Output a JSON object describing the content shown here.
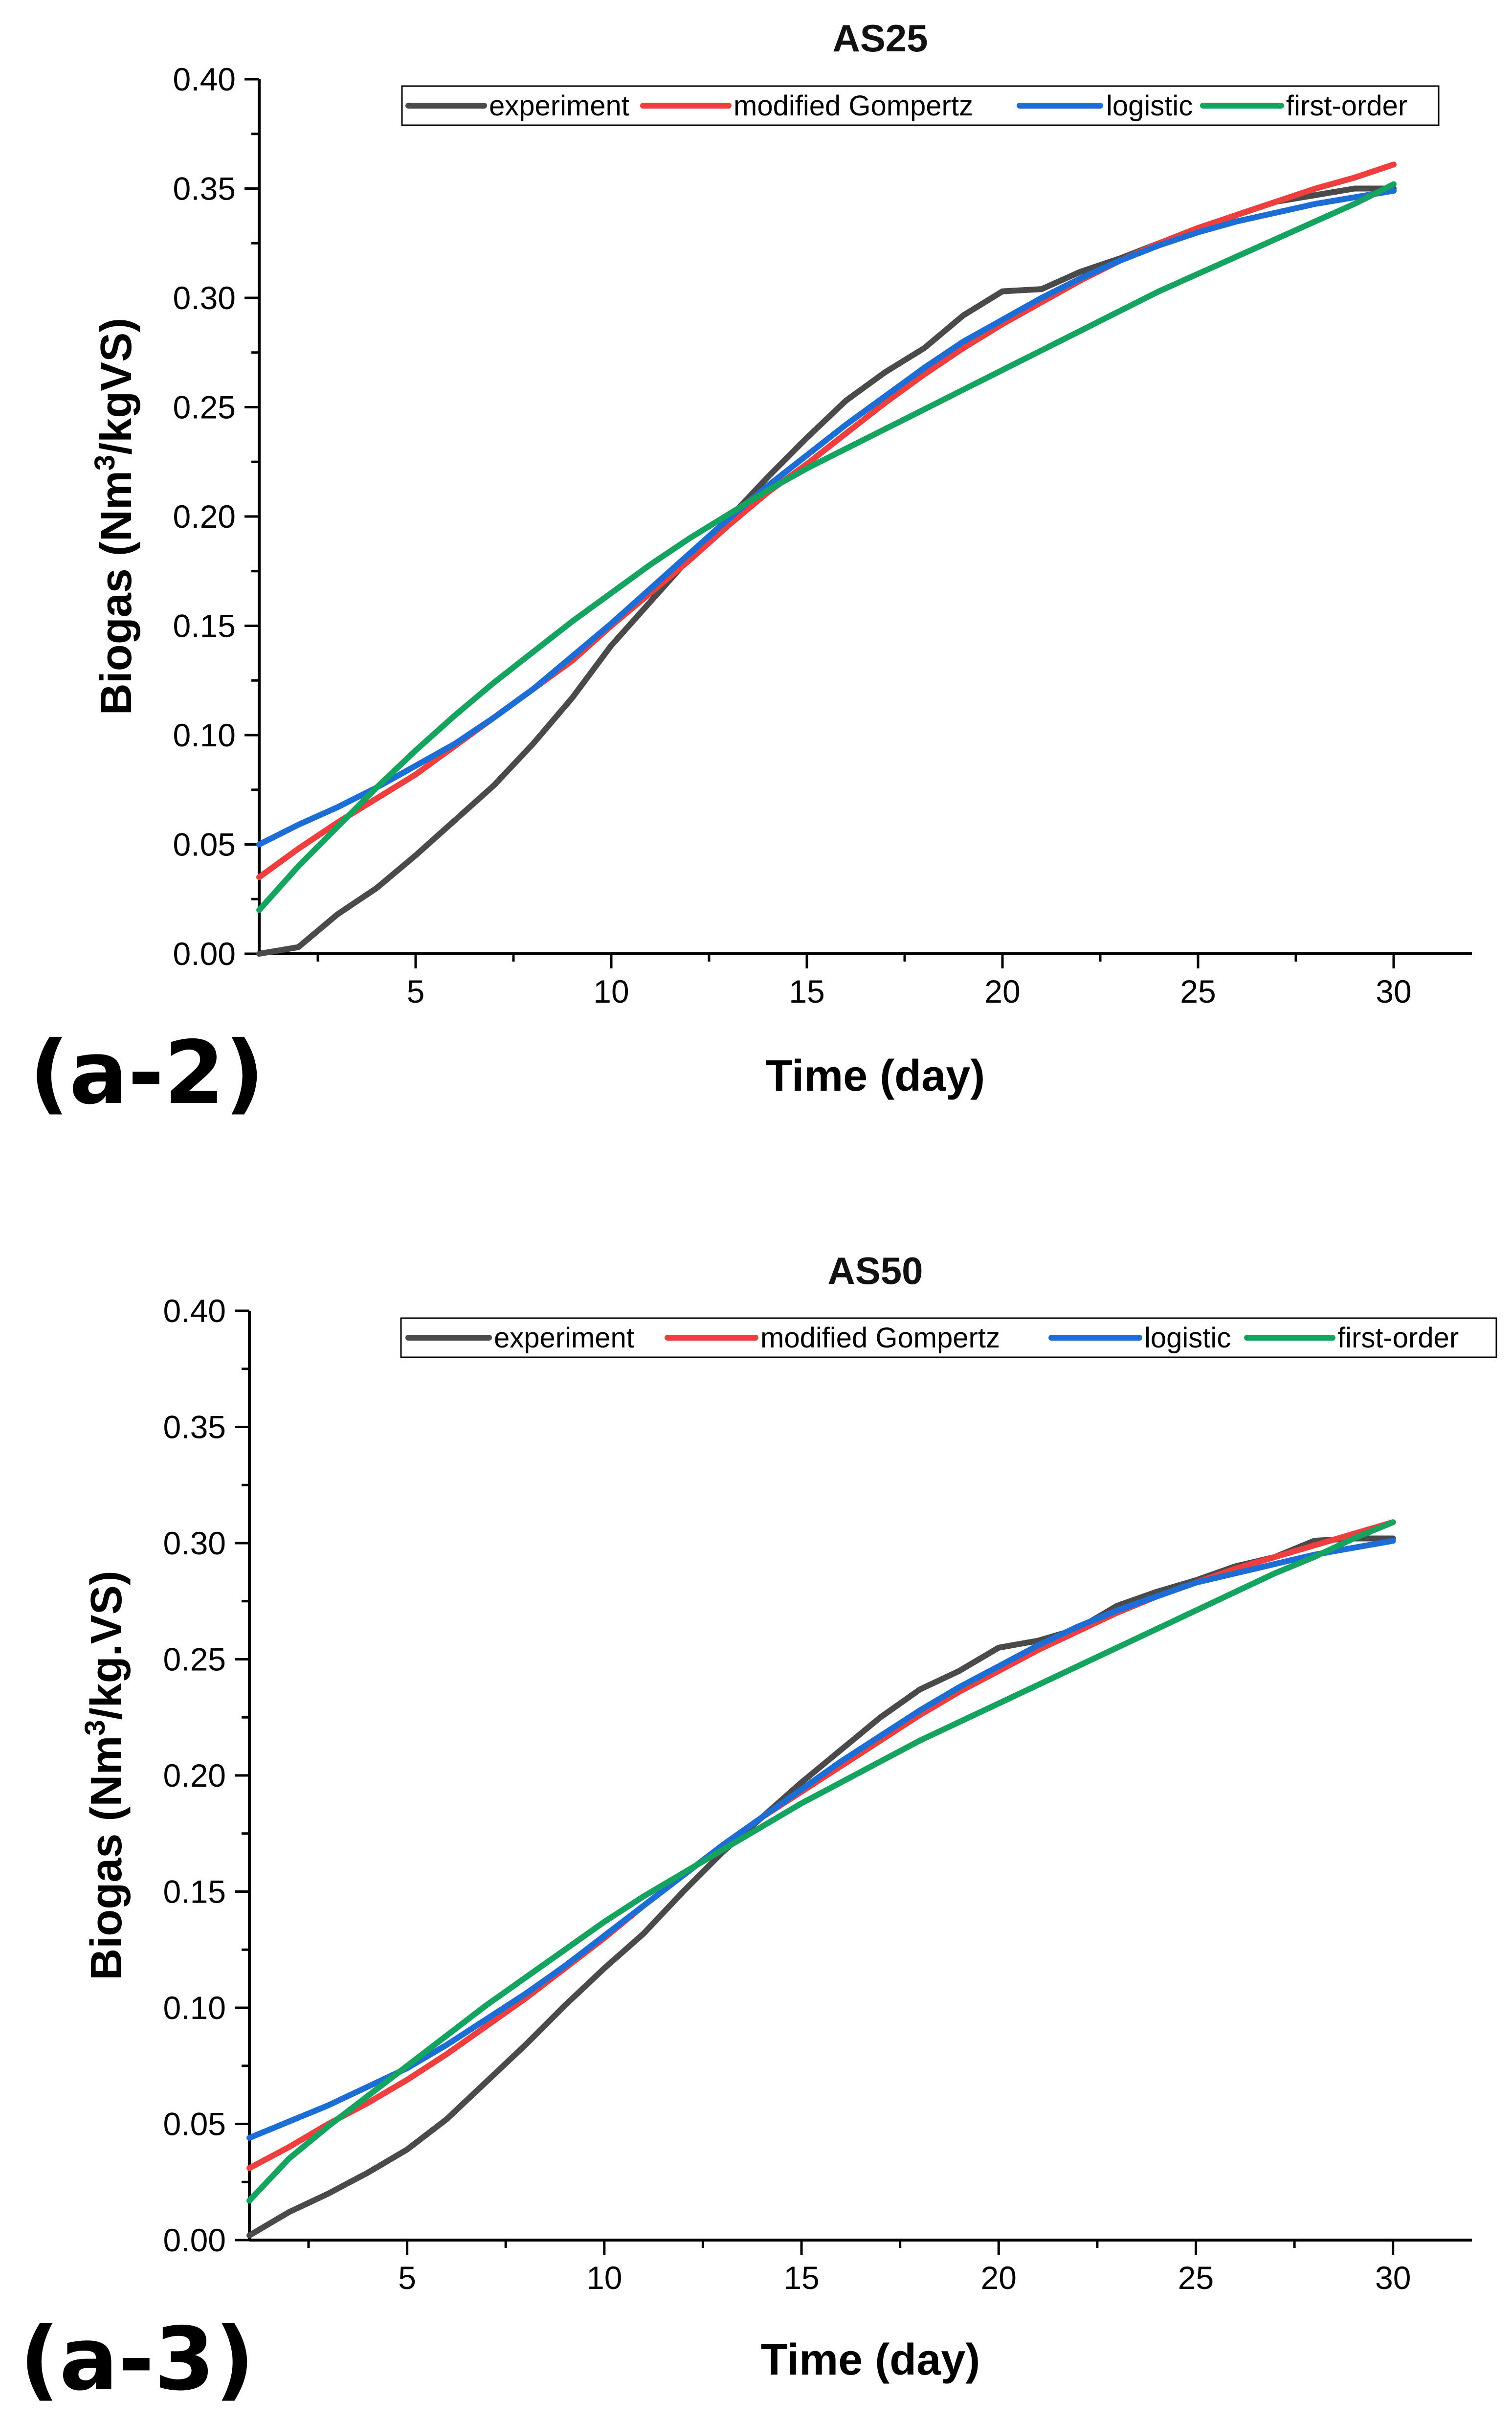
{
  "chart_data": [
    {
      "type": "line",
      "panel_label": "(a-2)",
      "title": "AS25",
      "xlabel": "Time (day)",
      "ylabel_main": "Biogas (Nm",
      "ylabel_sup": "3",
      "ylabel_tail": "/kgVS)",
      "xlim": [
        1,
        32
      ],
      "ylim": [
        0,
        0.4
      ],
      "xticks": [
        5,
        10,
        15,
        20,
        25,
        30
      ],
      "xtick_labels": [
        "5",
        "10",
        "15",
        "20",
        "25",
        "30"
      ],
      "yticks": [
        0,
        0.05,
        0.1,
        0.15,
        0.2,
        0.25,
        0.3,
        0.35,
        0.4
      ],
      "ytick_labels": [
        "0.00",
        "0.05",
        "0.10",
        "0.15",
        "0.20",
        "0.25",
        "0.30",
        "0.35",
        "0.40"
      ],
      "legend_position": "top",
      "series": [
        {
          "name": "experiment",
          "color": "#4a4a4a",
          "x": [
            1,
            2,
            3,
            4,
            5,
            6,
            7,
            8,
            9,
            10,
            11,
            12,
            13,
            14,
            15,
            16,
            17,
            18,
            19,
            20,
            21,
            22,
            23,
            24,
            25,
            26,
            27,
            28,
            29,
            30
          ],
          "y": [
            0.0,
            0.003,
            0.018,
            0.03,
            0.045,
            0.061,
            0.077,
            0.096,
            0.117,
            0.141,
            0.161,
            0.181,
            0.199,
            0.218,
            0.236,
            0.253,
            0.266,
            0.277,
            0.292,
            0.303,
            0.304,
            0.312,
            0.318,
            0.325,
            0.331,
            0.338,
            0.344,
            0.347,
            0.35,
            0.35
          ]
        },
        {
          "name": "modified Gompertz",
          "color": "#ef3e3e",
          "x": [
            1,
            2,
            3,
            4,
            5,
            6,
            7,
            8,
            9,
            10,
            11,
            12,
            13,
            14,
            15,
            16,
            17,
            18,
            19,
            20,
            21,
            22,
            23,
            24,
            25,
            26,
            27,
            28,
            29,
            30
          ],
          "y": [
            0.035,
            0.048,
            0.06,
            0.071,
            0.082,
            0.095,
            0.108,
            0.121,
            0.134,
            0.15,
            0.165,
            0.18,
            0.196,
            0.211,
            0.224,
            0.238,
            0.252,
            0.265,
            0.277,
            0.288,
            0.298,
            0.308,
            0.317,
            0.325,
            0.332,
            0.338,
            0.344,
            0.35,
            0.355,
            0.361
          ]
        },
        {
          "name": "logistic",
          "color": "#1c6ed6",
          "x": [
            1,
            2,
            3,
            4,
            5,
            6,
            7,
            8,
            9,
            10,
            11,
            12,
            13,
            14,
            15,
            16,
            17,
            18,
            19,
            20,
            21,
            22,
            23,
            24,
            25,
            26,
            27,
            28,
            29,
            30
          ],
          "y": [
            0.05,
            0.059,
            0.067,
            0.076,
            0.086,
            0.096,
            0.108,
            0.121,
            0.136,
            0.151,
            0.167,
            0.183,
            0.199,
            0.214,
            0.228,
            0.242,
            0.255,
            0.268,
            0.28,
            0.29,
            0.3,
            0.309,
            0.317,
            0.324,
            0.33,
            0.335,
            0.339,
            0.343,
            0.346,
            0.349
          ]
        },
        {
          "name": "first-order",
          "color": "#15a360",
          "x": [
            1,
            2,
            3,
            4,
            5,
            6,
            7,
            8,
            9,
            10,
            11,
            12,
            13,
            14,
            15,
            16,
            17,
            18,
            19,
            20,
            21,
            22,
            23,
            24,
            25,
            26,
            27,
            28,
            29,
            30
          ],
          "y": [
            0.02,
            0.04,
            0.058,
            0.076,
            0.093,
            0.109,
            0.124,
            0.138,
            0.152,
            0.165,
            0.178,
            0.19,
            0.201,
            0.212,
            0.222,
            0.231,
            0.24,
            0.249,
            0.258,
            0.267,
            0.276,
            0.285,
            0.294,
            0.303,
            0.311,
            0.319,
            0.327,
            0.335,
            0.343,
            0.352
          ]
        }
      ]
    },
    {
      "type": "line",
      "panel_label": "(a-3)",
      "title": "AS50",
      "xlabel": "Time (day)",
      "ylabel_main": "Biogas (Nm",
      "ylabel_sup": "3",
      "ylabel_tail": "/kg.VS)",
      "xlim": [
        1,
        32
      ],
      "ylim": [
        0,
        0.4
      ],
      "xticks": [
        5,
        10,
        15,
        20,
        25,
        30
      ],
      "xtick_labels": [
        "5",
        "10",
        "15",
        "20",
        "25",
        "30"
      ],
      "yticks": [
        0,
        0.05,
        0.1,
        0.15,
        0.2,
        0.25,
        0.3,
        0.35,
        0.4
      ],
      "ytick_labels": [
        "0.00",
        "0.05",
        "0.10",
        "0.15",
        "0.20",
        "0.25",
        "0.30",
        "0.35",
        "0.40"
      ],
      "legend_position": "top",
      "series": [
        {
          "name": "experiment",
          "color": "#4a4a4a",
          "x": [
            1,
            2,
            3,
            4,
            5,
            6,
            7,
            8,
            9,
            10,
            11,
            12,
            13,
            14,
            15,
            16,
            17,
            18,
            19,
            20,
            21,
            22,
            23,
            24,
            25,
            26,
            27,
            28,
            29,
            30
          ],
          "y": [
            0.002,
            0.012,
            0.02,
            0.029,
            0.039,
            0.052,
            0.068,
            0.084,
            0.101,
            0.117,
            0.132,
            0.15,
            0.167,
            0.182,
            0.197,
            0.211,
            0.225,
            0.237,
            0.245,
            0.255,
            0.258,
            0.263,
            0.273,
            0.279,
            0.284,
            0.29,
            0.294,
            0.301,
            0.302,
            0.302
          ]
        },
        {
          "name": "modified Gompertz",
          "color": "#ef3e3e",
          "x": [
            1,
            2,
            3,
            4,
            5,
            6,
            7,
            8,
            9,
            10,
            11,
            12,
            13,
            14,
            15,
            16,
            17,
            18,
            19,
            20,
            21,
            22,
            23,
            24,
            25,
            26,
            27,
            28,
            29,
            30
          ],
          "y": [
            0.031,
            0.04,
            0.05,
            0.059,
            0.069,
            0.08,
            0.092,
            0.104,
            0.117,
            0.13,
            0.144,
            0.157,
            0.17,
            0.182,
            0.193,
            0.204,
            0.215,
            0.226,
            0.236,
            0.245,
            0.254,
            0.262,
            0.27,
            0.277,
            0.283,
            0.289,
            0.294,
            0.299,
            0.304,
            0.309
          ]
        },
        {
          "name": "logistic",
          "color": "#1c6ed6",
          "x": [
            1,
            2,
            3,
            4,
            5,
            6,
            7,
            8,
            9,
            10,
            11,
            12,
            13,
            14,
            15,
            16,
            17,
            18,
            19,
            20,
            21,
            22,
            23,
            24,
            25,
            26,
            27,
            28,
            29,
            30
          ],
          "y": [
            0.044,
            0.051,
            0.058,
            0.066,
            0.074,
            0.084,
            0.095,
            0.106,
            0.118,
            0.131,
            0.144,
            0.157,
            0.17,
            0.182,
            0.194,
            0.206,
            0.217,
            0.228,
            0.238,
            0.247,
            0.256,
            0.264,
            0.271,
            0.277,
            0.283,
            0.287,
            0.291,
            0.295,
            0.298,
            0.301
          ]
        },
        {
          "name": "first-order",
          "color": "#15a360",
          "x": [
            1,
            2,
            3,
            4,
            5,
            6,
            7,
            8,
            9,
            10,
            11,
            12,
            13,
            14,
            15,
            16,
            17,
            18,
            19,
            20,
            21,
            22,
            23,
            24,
            25,
            26,
            27,
            28,
            29,
            30
          ],
          "y": [
            0.017,
            0.035,
            0.049,
            0.062,
            0.075,
            0.088,
            0.101,
            0.113,
            0.125,
            0.137,
            0.148,
            0.158,
            0.168,
            0.178,
            0.188,
            0.197,
            0.206,
            0.215,
            0.223,
            0.231,
            0.239,
            0.247,
            0.255,
            0.263,
            0.271,
            0.279,
            0.287,
            0.294,
            0.302,
            0.309
          ]
        }
      ]
    }
  ]
}
